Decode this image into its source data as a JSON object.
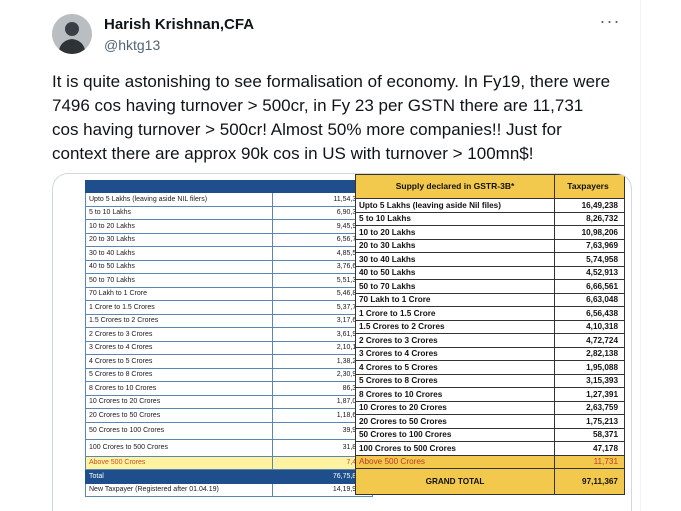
{
  "author": {
    "name": "Harish Krishnan,CFA",
    "handle": "@hktg13",
    "more_label": "···"
  },
  "tweet": {
    "text": "It is quite astonishing to see formalisation of economy. In Fy19, there were 7496 cos having turnover > 500cr, in Fy 23 per GSTN there are 11,731 cos having turnover > 500cr! Almost 50% more companies!! Just for context there are approx 90k cos in US with turnover > 100mn$!"
  },
  "left_table": {
    "rows": [
      {
        "label": "Upto 5 Lakhs (leaving aside NIL filers)",
        "value": "11,54,339"
      },
      {
        "label": "5 to 10 Lakhs",
        "value": "6,90,368"
      },
      {
        "label": "10 to 20 Lakhs",
        "value": "9,45,909"
      },
      {
        "label": "20 to 30 Lakhs",
        "value": "6,56,738"
      },
      {
        "label": "30 to 40 Lakhs",
        "value": "4,85,597"
      },
      {
        "label": "40 to 50 Lakhs",
        "value": "3,76,698"
      },
      {
        "label": "50 to 70 Lakhs",
        "value": "5,51,390"
      },
      {
        "label": "70 Lakh to 1 Crore",
        "value": "5,46,820"
      },
      {
        "label": "1 Crore to 1.5 Crores",
        "value": "5,37,767"
      },
      {
        "label": "1.5 Crores to 2 Crores",
        "value": "3,17,698"
      },
      {
        "label": "2 Crores to 3 Crores",
        "value": "3,61,937"
      },
      {
        "label": "3 Crores to 4 Crores",
        "value": "2,10,144"
      },
      {
        "label": "4 Crores to 5 Crores",
        "value": "1,38,237"
      },
      {
        "label": "5 Crores to 8 Crores",
        "value": "2,30,971"
      },
      {
        "label": "8 Crores to 10 Crores",
        "value": "86,316"
      },
      {
        "label": "10 Crores to 20 Crores",
        "value": "1,87,015"
      },
      {
        "label": "20 Crores to 50 Crores",
        "value": "1,18,633"
      },
      {
        "label": "50 Crores to 100 Crores",
        "value": "39,936"
      },
      {
        "label": "100 Crores to 500 Crores",
        "value": "31,878"
      }
    ],
    "highlight": {
      "label": "Above 500 Crores",
      "value": "7,496"
    },
    "total": {
      "label": "Total",
      "value": "76,75,887"
    },
    "new_taxpayer": {
      "label": "New Taxpayer (Registered after 01.04.19)",
      "value": "14,19,936"
    }
  },
  "right_table": {
    "header_left": "Supply declared in GSTR-3B*",
    "header_right": "Taxpayers",
    "rows": [
      {
        "label": "Upto 5 Lakhs (leaving aside Nil files)",
        "value": "16,49,238"
      },
      {
        "label": "5 to 10 Lakhs",
        "value": "8,26,732"
      },
      {
        "label": "10 to 20 Lakhs",
        "value": "10,98,206"
      },
      {
        "label": "20 to 30 Lakhs",
        "value": "7,63,969"
      },
      {
        "label": "30 to 40 Lakhs",
        "value": "5,74,958"
      },
      {
        "label": "40 to 50 Lakhs",
        "value": "4,52,913"
      },
      {
        "label": "50 to 70 Lakhs",
        "value": "6,66,561"
      },
      {
        "label": "70 Lakh to 1 Crore",
        "value": "6,63,048"
      },
      {
        "label": "1 Crore to 1.5 Crore",
        "value": "6,56,438"
      },
      {
        "label": "1.5 Crores to 2 Crores",
        "value": "4,10,318"
      },
      {
        "label": "2 Crores to 3 Crores",
        "value": "4,72,724"
      },
      {
        "label": "3 Crores to 4 Crores",
        "value": "2,82,138"
      },
      {
        "label": "4 Crores to 5 Crores",
        "value": "1,95,088"
      },
      {
        "label": "5 Crores to 8 Crores",
        "value": "3,15,393"
      },
      {
        "label": "8 Crores to 10 Crores",
        "value": "1,27,391"
      },
      {
        "label": "10 Crores to 20 Crores",
        "value": "2,63,759"
      },
      {
        "label": "20 Crores to 50 Crores",
        "value": "1,75,213"
      },
      {
        "label": "50 Crores to 100 Crores",
        "value": "58,371"
      },
      {
        "label": "100 Crores to 500 Crores",
        "value": "47,178"
      }
    ],
    "highlight": {
      "label": "Above 500 Crores",
      "value": "11,731"
    },
    "grand_total": {
      "label": "GRAND TOTAL",
      "value": "97,11,367"
    }
  },
  "colors": {
    "left_header_blue": "#1f4e8c",
    "highlight_yellow": "#f2c94c",
    "highlight_text": "#c0392b"
  }
}
